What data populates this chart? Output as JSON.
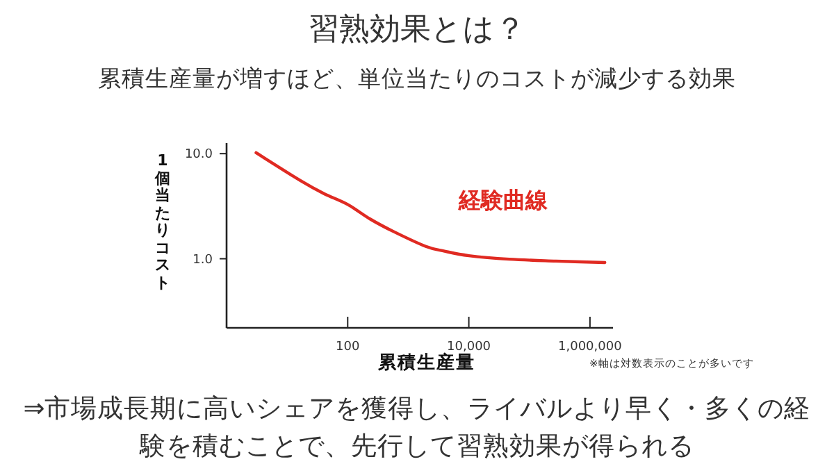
{
  "chart_data": {
    "type": "line",
    "title": "習熟効果とは？",
    "subtitle": "累積生産量が増すほど、単位当たりのコストが減少する効果",
    "xlabel": "累積生産量",
    "ylabel": "1個当たりコスト",
    "log": "xy",
    "xlim": [
      1,
      2400000
    ],
    "ylim": [
      0.22,
      12.6
    ],
    "xticks": [
      {
        "value": 100,
        "label": "100"
      },
      {
        "value": 10000,
        "label": "10,000"
      },
      {
        "value": 1000000,
        "label": "1,000,000"
      }
    ],
    "yticks": [
      {
        "value": 10,
        "label": "10.0"
      },
      {
        "value": 1,
        "label": "1.0"
      }
    ],
    "series": [
      {
        "name": "経験曲線",
        "color": "#e02a22",
        "x": [
          3.07,
          16.5,
          40,
          100,
          234,
          565,
          1950,
          3980,
          10000,
          46600,
          273000,
          1760000
        ],
        "values": [
          10.2,
          5.55,
          4.18,
          3.28,
          2.39,
          1.82,
          1.31,
          1.18,
          1.07,
          0.99,
          0.95,
          0.92
        ]
      }
    ],
    "annotations": [
      "※軸は対数表示のことが多いです",
      "⇒市場成長期に高いシェアを獲得し、ライバルより早く・多くの経験を積むことで、先行して習熟効果が得られる"
    ]
  }
}
